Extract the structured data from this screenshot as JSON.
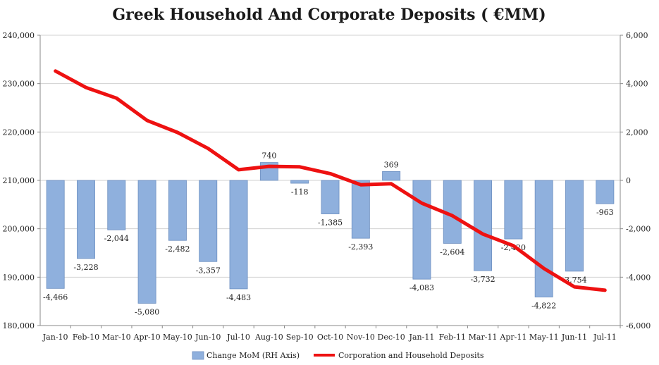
{
  "chart_data": {
    "type": "bar+line",
    "title": "Greek Household And Corporate Deposits ( €MM)",
    "categories": [
      "Jan-10",
      "Feb-10",
      "Mar-10",
      "Apr-10",
      "May-10",
      "Jun-10",
      "Jul-10",
      "Aug-10",
      "Sep-10",
      "Oct-10",
      "Nov-10",
      "Dec-10",
      "Jan-11",
      "Feb-11",
      "Mar-11",
      "Apr-11",
      "May-11",
      "Jun-11",
      "Jul-11"
    ],
    "bar_series": {
      "name": "Change MoM (RH Axis)",
      "axis": "right",
      "color": "#8fb0dd",
      "values": [
        -4466,
        -3228,
        -2044,
        -5080,
        -2482,
        -3357,
        -4483,
        740,
        -118,
        -1385,
        -2393,
        369,
        -4083,
        -2604,
        -3732,
        -2420,
        -4822,
        -3754,
        -963
      ],
      "labels": [
        "-4,466",
        "-3,228",
        "-2,044",
        "-5,080",
        "-2,482",
        "-3,357",
        "-4,483",
        "740",
        "-118",
        "-1,385",
        "-2,393",
        "369",
        "-4,083",
        "-2,604",
        "-3,732",
        "-2,420",
        "-4,822",
        "-3,754",
        "-963"
      ]
    },
    "line_series": {
      "name": "Corporation and Household Deposits",
      "axis": "left",
      "color": "#ee1111",
      "values": [
        232600,
        229200,
        227000,
        222400,
        219900,
        216600,
        212200,
        212900,
        212800,
        211400,
        209100,
        209300,
        205300,
        202700,
        198900,
        196500,
        191800,
        188000,
        187300
      ]
    },
    "left_axis": {
      "min": 180000,
      "max": 240000,
      "ticks": [
        "180,000",
        "190,000",
        "200,000",
        "210,000",
        "220,000",
        "230,000",
        "240,000"
      ]
    },
    "right_axis": {
      "min": -6000,
      "max": 6000,
      "ticks": [
        "-6,000",
        "-4,000",
        "-2,000",
        "0",
        "2,000",
        "4,000",
        "6,000"
      ]
    },
    "grid": true,
    "legend_position": "bottom"
  }
}
